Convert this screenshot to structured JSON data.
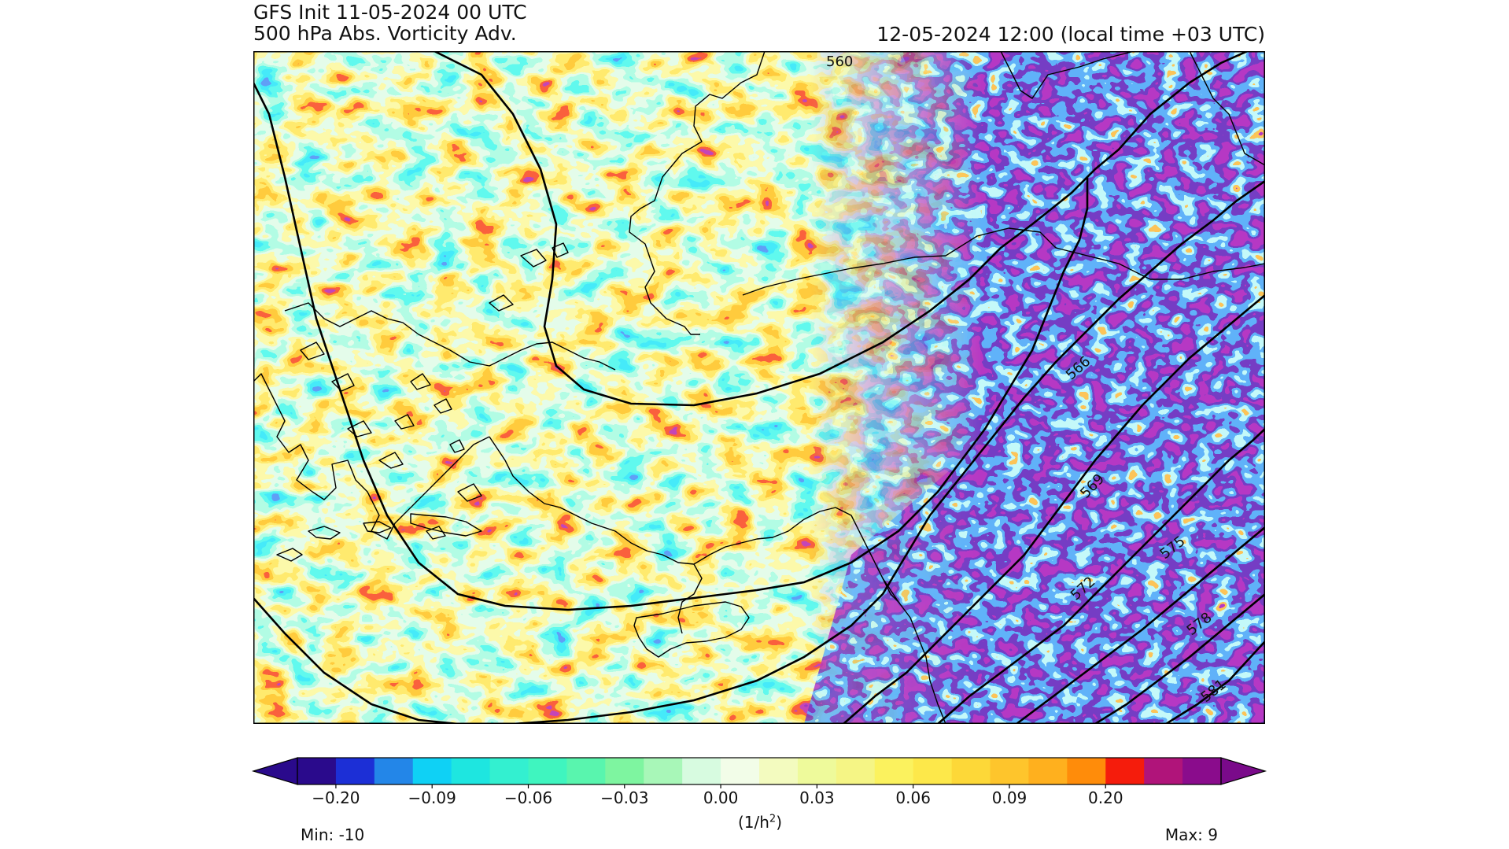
{
  "header": {
    "title_line_1": "GFS Init 11-05-2024 00 UTC",
    "title_line_2": "500 hPa Abs. Vorticity Adv.",
    "valid_time": "12-05-2024 12:00 (local time +03 UTC)"
  },
  "map": {
    "field": "500 hPa absolute vorticity advection",
    "geopotential_contours": [
      {
        "label": "560"
      },
      {
        "label": "566"
      },
      {
        "label": "569"
      },
      {
        "label": "572"
      },
      {
        "label": "575"
      },
      {
        "label": "578"
      },
      {
        "label": "581"
      }
    ]
  },
  "colorbar": {
    "units_base": "(1/h",
    "units_exp": "2",
    "units_close": ")",
    "tick_labels": [
      "−0.20",
      "−0.09",
      "−0.06",
      "−0.03",
      "0.00",
      "0.03",
      "0.06",
      "0.09",
      "0.20"
    ],
    "colors": [
      "#2a0a8c",
      "#1c2fd6",
      "#2386e8",
      "#0fd1f5",
      "#1ee6e0",
      "#33f0d0",
      "#3ff5bf",
      "#59f5ae",
      "#7ef5a0",
      "#a8f7b8",
      "#d7fbe0",
      "#f2fde8",
      "#f3fbbf",
      "#eefa9b",
      "#f5f585",
      "#fbf25e",
      "#fde84a",
      "#fdd838",
      "#fec52c",
      "#ffb01e",
      "#ff8c0a",
      "#f51c0c",
      "#b0147a",
      "#8a0c8c"
    ],
    "extend_low_color": "#2a0a8c",
    "extend_high_color": "#7a0a8a",
    "min_label": "Min: -10",
    "max_label": "Max: 9"
  }
}
